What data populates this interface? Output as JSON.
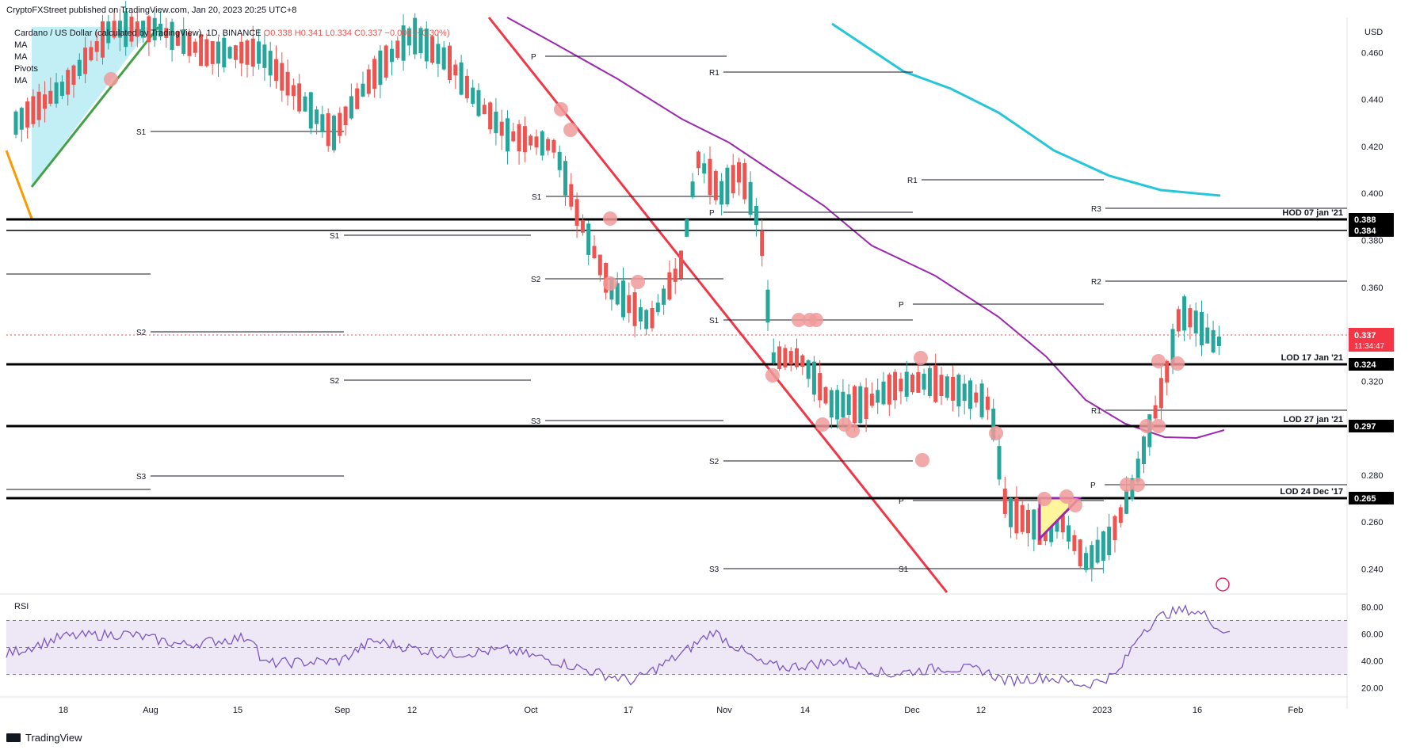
{
  "header": {
    "publisher": "CryptoFXStreet published on TradingView.com, Jan 20, 2023 20:25 UTC+8",
    "symbol_line": "Cardano / US Dollar (calculated by TradingView), 1D, BINANCE",
    "ohlc": "O0.338 H0.341 L0.334 C0.337 −0.001 (−0.30%)",
    "indicators": [
      "MA",
      "MA",
      "Pivots",
      "MA"
    ]
  },
  "price_axis": {
    "currency": "USD",
    "ticks": [
      "0.460",
      "0.440",
      "0.420",
      "0.400",
      "0.380",
      "0.360",
      "0.340",
      "0.320",
      "0.300",
      "0.280",
      "0.260",
      "0.240"
    ],
    "current_price": "0.337",
    "countdown": "11:34:47"
  },
  "time_axis": {
    "labels": [
      "18",
      "Aug",
      "15",
      "Sep",
      "12",
      "Oct",
      "17",
      "Nov",
      "14",
      "Dec",
      "12",
      "2023",
      "16",
      "Feb"
    ]
  },
  "levels": [
    {
      "label": "HOD 07 jan '21",
      "value": "0.388"
    },
    {
      "label": "",
      "value": "0.384"
    },
    {
      "label": "LOD 17 Jan '21",
      "value": "0.324"
    },
    {
      "label": "LOD 27 jan '21",
      "value": "0.297"
    },
    {
      "label": "LOD 24 Dec '17",
      "value": "0.265"
    }
  ],
  "pivot_labels": [
    "P",
    "R1",
    "S1",
    "S1",
    "S1",
    "P",
    "S2",
    "S2",
    "S2",
    "S1",
    "S3",
    "S3",
    "S2",
    "S3",
    "R1",
    "P",
    "R3",
    "R2",
    "P",
    "R1",
    "P",
    "S1"
  ],
  "rsi": {
    "title": "RSI",
    "ticks": [
      "80.00",
      "60.00",
      "40.00",
      "20.00"
    ]
  },
  "footer": {
    "brand": "TradingView"
  },
  "colors": {
    "up": "#26a69a",
    "down": "#ef5350",
    "ma_slow": "#26c6da",
    "ma_mid": "#9c27b0",
    "trend_red": "#f23645",
    "trend_green": "#43a047",
    "rsi_line": "#7e57c2",
    "rsi_band": "#ede7f6",
    "circle": "#ef9a9a"
  },
  "chart_data": {
    "type": "candlestick",
    "title": "Cardano / US Dollar (calculated by TradingView), 1D, BINANCE",
    "ylim": [
      0.23,
      0.475
    ],
    "x": [
      "2022-07-09",
      "2023-02-06"
    ],
    "ohlc_sample": [
      {
        "date": "2022-07-15",
        "o": 0.45,
        "h": 0.47,
        "l": 0.43,
        "c": 0.45
      },
      {
        "date": "2022-10-01",
        "o": 0.432,
        "h": 0.44,
        "l": 0.42,
        "c": 0.428
      },
      {
        "date": "2022-11-07",
        "o": 0.39,
        "h": 0.4,
        "l": 0.36,
        "c": 0.37
      },
      {
        "date": "2022-11-09",
        "o": 0.37,
        "h": 0.38,
        "l": 0.31,
        "c": 0.32
      },
      {
        "date": "2022-12-16",
        "o": 0.3,
        "h": 0.305,
        "l": 0.26,
        "c": 0.265
      },
      {
        "date": "2022-12-30",
        "o": 0.249,
        "h": 0.252,
        "l": 0.24,
        "c": 0.244
      },
      {
        "date": "2023-01-10",
        "o": 0.28,
        "h": 0.31,
        "l": 0.275,
        "c": 0.3
      },
      {
        "date": "2023-01-14",
        "o": 0.33,
        "h": 0.37,
        "l": 0.325,
        "c": 0.355
      },
      {
        "date": "2023-01-20",
        "o": 0.338,
        "h": 0.341,
        "l": 0.334,
        "c": 0.337
      }
    ],
    "horizontal_levels": [
      0.388,
      0.384,
      0.324,
      0.297,
      0.265
    ],
    "rsi_ylim": [
      15,
      85
    ],
    "rsi_bands": [
      30,
      50,
      70
    ]
  }
}
